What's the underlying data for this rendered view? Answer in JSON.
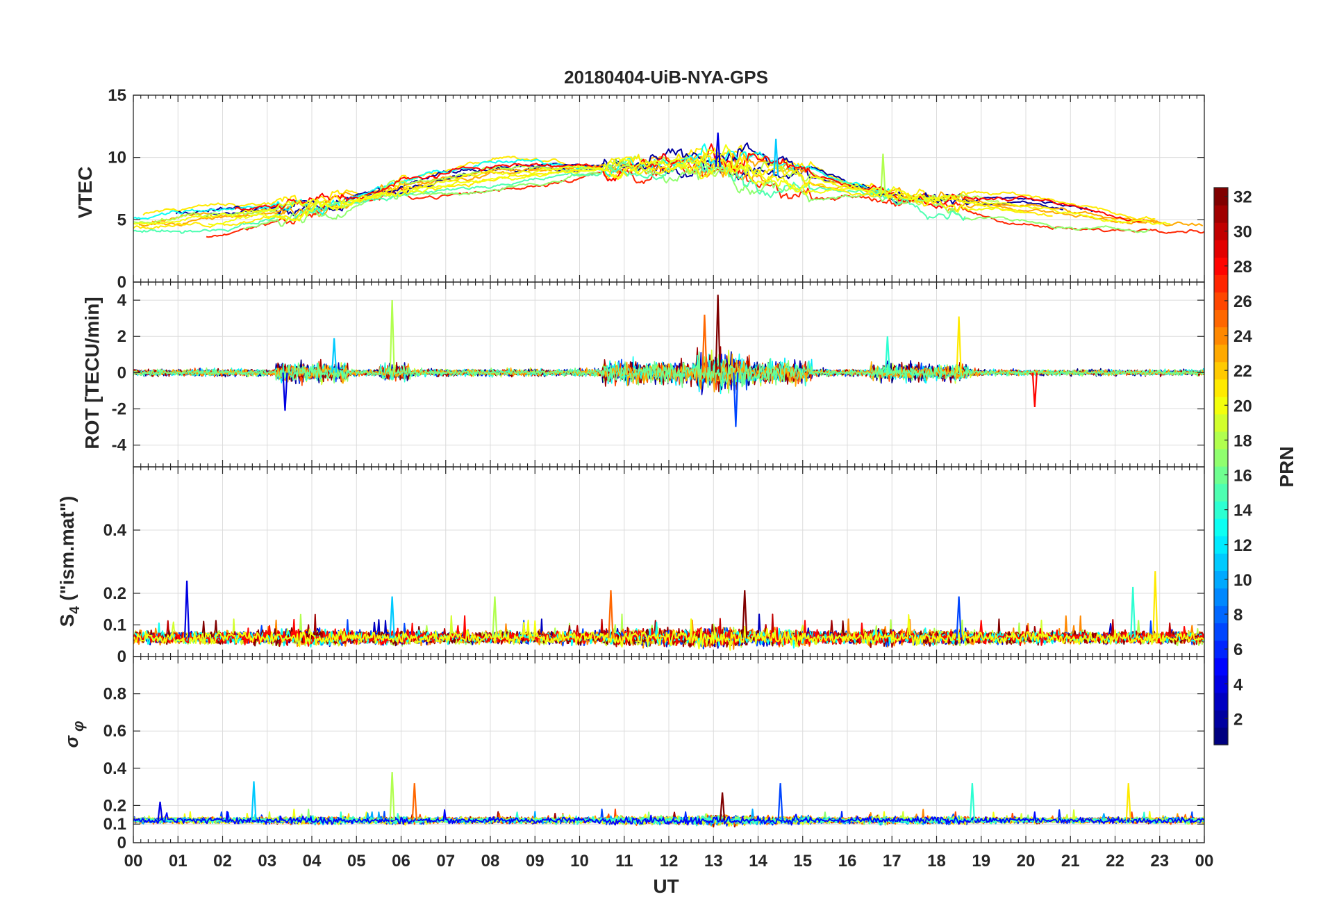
{
  "chart_data": {
    "type": "line",
    "title": "20180404-UiB-NYA-GPS",
    "xlabel": "UT",
    "x_tick_labels": [
      "00",
      "01",
      "02",
      "03",
      "04",
      "05",
      "06",
      "07",
      "08",
      "09",
      "10",
      "11",
      "12",
      "13",
      "14",
      "15",
      "16",
      "17",
      "18",
      "19",
      "20",
      "21",
      "22",
      "23",
      "00"
    ],
    "xlim_hours": [
      0,
      24
    ],
    "colorbar": {
      "label": "PRN",
      "colormap": "jet",
      "range": [
        1,
        32
      ],
      "ticks": [
        "2",
        "4",
        "6",
        "8",
        "10",
        "12",
        "14",
        "16",
        "18",
        "20",
        "22",
        "24",
        "26",
        "28",
        "30",
        "32"
      ]
    },
    "panels": [
      {
        "id": "vtec",
        "ylabel": "VTEC",
        "ylim": [
          0,
          15
        ],
        "y_ticks": [
          "0",
          "5",
          "10",
          "15"
        ],
        "trend": {
          "x": [
            0,
            2,
            4,
            6,
            8,
            10,
            12,
            13,
            14,
            16,
            18,
            20,
            22,
            24
          ],
          "y": [
            4.5,
            5.0,
            6.0,
            7.5,
            8.5,
            9.0,
            9.2,
            9.3,
            8.8,
            7.5,
            6.5,
            5.8,
            4.8,
            4.5
          ]
        },
        "peak_values": {
          "x": [
            13.1,
            14.4,
            16.8
          ],
          "y": [
            12.0,
            11.5,
            10.3
          ]
        }
      },
      {
        "id": "rot",
        "ylabel": "ROT [TECU/min]",
        "ylim": [
          -5.2,
          5
        ],
        "y_ticks": [
          "-4",
          "-2",
          "0",
          "2",
          "4"
        ],
        "spikes": {
          "x": [
            3.4,
            4.5,
            5.8,
            12.8,
            13.1,
            13.5,
            16.9,
            18.5,
            20.2
          ],
          "y": [
            -2.1,
            1.9,
            4.0,
            3.2,
            4.3,
            -3.0,
            2.0,
            3.1,
            -1.9
          ]
        }
      },
      {
        "id": "s4",
        "ylabel": "S_4 (\"ism.mat\")",
        "ylim": [
          0,
          0.6
        ],
        "y_ticks": [
          "0",
          "0.1",
          "0.2",
          "0.4"
        ],
        "baseline": 0.06,
        "spikes": {
          "x": [
            1.2,
            5.8,
            8.1,
            10.7,
            13.7,
            18.5,
            22.4,
            22.9
          ],
          "y": [
            0.24,
            0.19,
            0.19,
            0.21,
            0.21,
            0.19,
            0.22,
            0.27
          ]
        }
      },
      {
        "id": "sigma_phi",
        "ylabel": "σ_φ",
        "ylim": [
          0,
          1
        ],
        "y_ticks": [
          "0",
          "0.1",
          "0.2",
          "0.4",
          "0.6",
          "0.8"
        ],
        "baseline": 0.12,
        "spikes": {
          "x": [
            0.6,
            2.7,
            5.8,
            6.3,
            13.2,
            14.5,
            18.8,
            22.3
          ],
          "y": [
            0.22,
            0.33,
            0.38,
            0.32,
            0.27,
            0.32,
            0.32,
            0.32
          ]
        }
      }
    ]
  }
}
